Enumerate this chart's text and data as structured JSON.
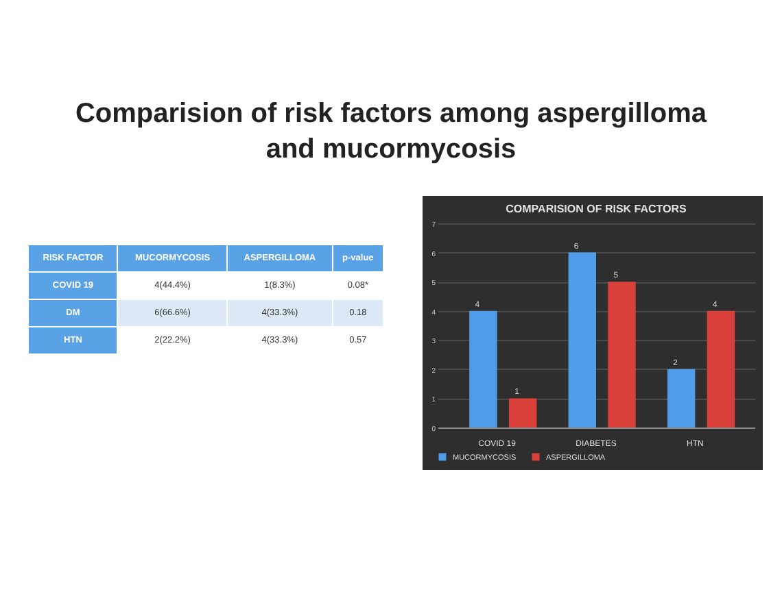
{
  "chart_data": [
    {
      "type": "other",
      "title": "Comparision of risk factors among aspergilloma and mucormycosis",
      "annotations": [
        "RISK FACTOR",
        "MUCORMYCOSIS",
        "ASPERGILLOMA",
        "p-value",
        "COVID 19",
        "4(44.4%)",
        "1(8.3%)",
        "0.08*",
        "DM",
        "6(66.6%)",
        "4(33.3%)",
        "0.18",
        "HTN",
        "2(22.2%)",
        "4(33.3%)",
        "0.57"
      ]
    },
    {
      "type": "bar",
      "title": "COMPARISION OF RISK FACTORS",
      "categories": [
        "COVID 19",
        "DIABETES",
        "HTN"
      ],
      "series": [
        {
          "name": "MUCORMYCOSIS",
          "color": "#4f9de8",
          "values": [
            4,
            6,
            2
          ]
        },
        {
          "name": "ASPERGILLOMA",
          "color": "#d9403a",
          "values": [
            1,
            5,
            4
          ]
        }
      ],
      "ylim": [
        0,
        7
      ],
      "yticks": [
        0,
        1,
        2,
        3,
        4,
        5,
        6,
        7
      ],
      "grid": "y",
      "legend": "bottom",
      "data_labels": true
    }
  ]
}
